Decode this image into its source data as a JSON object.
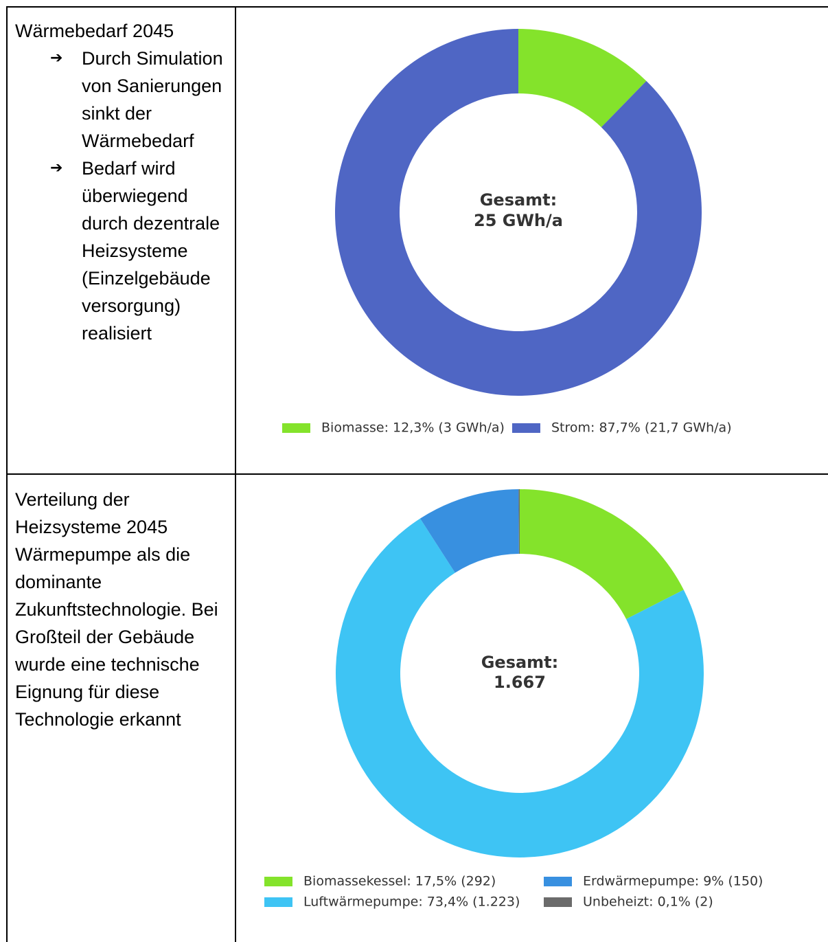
{
  "table": {
    "rows": [
      {
        "title": "Wärmebedarf 2045",
        "bullets": [
          "Durch Simulation von Sanierungen sinkt der Wärmebedarf",
          "Bedarf wird überwiegend durch dezentrale Heizsysteme (Einzelgebäude versorgung) realisiert"
        ]
      },
      {
        "title": "Verteilung der Heizsysteme 2045",
        "text": "Wärmepumpe als die dominante Zukunftstechnologie. Bei Großteil der Gebäude wurde eine technische Eignung für diese Technologie erkannt"
      }
    ]
  },
  "chart_data": [
    {
      "type": "donut",
      "center_label": [
        "Gesamt:",
        "25 GWh/a"
      ],
      "categories": [
        "Biomasse: 12,3% (3 GWh/a)",
        "Strom: 87,7% (21,7 GWh/a)"
      ],
      "values": [
        12.3,
        87.7
      ],
      "colors": [
        "#84e32b",
        "#4f66c4"
      ]
    },
    {
      "type": "donut",
      "center_label": [
        "Gesamt:",
        "1.667"
      ],
      "categories": [
        "Biomassekessel: 17,5% (292)",
        "Luftwärmepumpe: 73,4% (1.223)",
        "Erdwärmepumpe: 9% (150)",
        "Unbeheizt: 0,1% (2)"
      ],
      "values": [
        17.5,
        73.4,
        9,
        0.1
      ],
      "colors": [
        "#84e32b",
        "#3ec4f4",
        "#3890e0",
        "#6b6b6b"
      ]
    }
  ]
}
